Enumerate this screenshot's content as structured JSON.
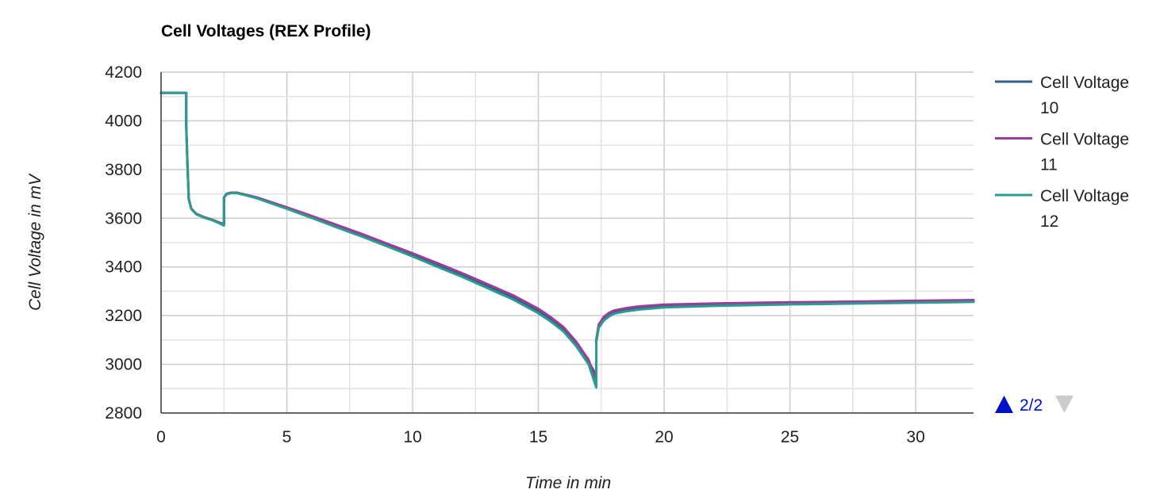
{
  "chart_data": {
    "type": "line",
    "title": "Cell Voltages (REX Profile)",
    "xlabel": "Time in min",
    "ylabel": "Cell Voltage in mV",
    "xlim": [
      0,
      32.3
    ],
    "ylim": [
      2800,
      4200
    ],
    "x_ticks": [
      "0",
      "5",
      "10",
      "15",
      "20",
      "25",
      "30"
    ],
    "y_ticks": [
      "2800",
      "3000",
      "3200",
      "3400",
      "3600",
      "3800",
      "4000",
      "4200"
    ],
    "grid": true,
    "legend_position": "right",
    "series": [
      {
        "name": "Cell Voltage 10",
        "legend_lines": [
          "Cell Voltage",
          "10"
        ],
        "color": "#2f5f8a",
        "x": [
          0,
          1.0,
          1.0,
          1.05,
          1.1,
          1.2,
          1.4,
          1.7,
          2.0,
          2.3,
          2.5,
          2.5,
          2.6,
          2.8,
          3.0,
          3.3,
          3.8,
          5,
          6,
          7,
          8,
          9,
          10,
          11,
          12,
          13,
          14,
          15,
          15.5,
          16,
          16.5,
          17.0,
          17.3,
          17.3,
          17.4,
          17.6,
          17.8,
          18.0,
          18.5,
          19,
          20,
          22,
          25,
          28,
          30,
          32.3
        ],
        "y": [
          4115,
          4115,
          3980,
          3820,
          3680,
          3640,
          3618,
          3605,
          3595,
          3583,
          3575,
          3685,
          3700,
          3705,
          3705,
          3698,
          3685,
          3643,
          3606,
          3568,
          3530,
          3490,
          3450,
          3408,
          3366,
          3320,
          3275,
          3220,
          3185,
          3145,
          3085,
          3010,
          2955,
          3100,
          3160,
          3190,
          3205,
          3215,
          3225,
          3232,
          3240,
          3245,
          3250,
          3253,
          3256,
          3259
        ]
      },
      {
        "name": "Cell Voltage 11",
        "legend_lines": [
          "Cell Voltage",
          "11"
        ],
        "color": "#9b3d9b",
        "x": [
          0,
          1.0,
          1.0,
          1.05,
          1.1,
          1.2,
          1.4,
          1.7,
          2.0,
          2.3,
          2.5,
          2.5,
          2.6,
          2.8,
          3.0,
          3.3,
          3.8,
          5,
          6,
          7,
          8,
          9,
          10,
          11,
          12,
          13,
          14,
          15,
          15.5,
          16,
          16.5,
          17.0,
          17.3,
          17.3,
          17.4,
          17.6,
          17.8,
          18.0,
          18.5,
          19,
          20,
          22,
          25,
          28,
          30,
          32.3
        ],
        "y": [
          4115,
          4115,
          3980,
          3820,
          3680,
          3640,
          3618,
          3605,
          3595,
          3583,
          3575,
          3685,
          3700,
          3705,
          3705,
          3698,
          3686,
          3645,
          3609,
          3572,
          3535,
          3495,
          3456,
          3415,
          3373,
          3328,
          3283,
          3228,
          3193,
          3153,
          3093,
          3018,
          2930,
          3100,
          3163,
          3195,
          3211,
          3221,
          3231,
          3238,
          3245,
          3250,
          3255,
          3258,
          3261,
          3264
        ]
      },
      {
        "name": "Cell Voltage 12",
        "legend_lines": [
          "Cell Voltage",
          "12"
        ],
        "color": "#2a9d8f",
        "x": [
          0,
          1.0,
          1.0,
          1.05,
          1.1,
          1.2,
          1.4,
          1.7,
          2.0,
          2.3,
          2.5,
          2.5,
          2.6,
          2.8,
          3.0,
          3.3,
          3.8,
          5,
          6,
          7,
          8,
          9,
          10,
          11,
          12,
          13,
          14,
          15,
          15.5,
          16,
          16.5,
          17.0,
          17.3,
          17.3,
          17.4,
          17.6,
          17.8,
          18.0,
          18.5,
          19,
          20,
          22,
          25,
          28,
          30,
          32.3
        ],
        "y": [
          4115,
          4115,
          3978,
          3818,
          3678,
          3638,
          3616,
          3603,
          3593,
          3580,
          3570,
          3683,
          3698,
          3703,
          3703,
          3696,
          3682,
          3639,
          3601,
          3562,
          3524,
          3484,
          3443,
          3400,
          3358,
          3312,
          3266,
          3210,
          3175,
          3135,
          3075,
          3000,
          2905,
          3090,
          3150,
          3180,
          3196,
          3208,
          3218,
          3225,
          3234,
          3240,
          3246,
          3250,
          3253,
          3256
        ]
      }
    ],
    "pager": {
      "label": "2/2",
      "up_color": "#0011cc",
      "down_color": "#cccccc"
    }
  }
}
